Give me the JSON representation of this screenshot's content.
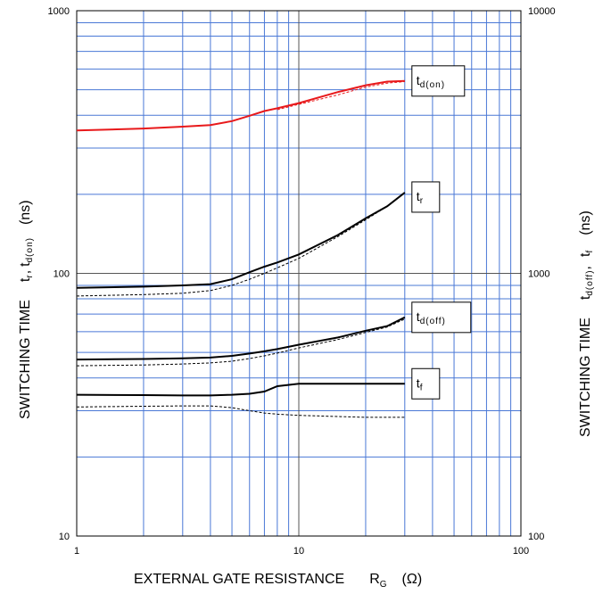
{
  "chart_data": {
    "type": "line",
    "x_scale": "log",
    "y_scale": "log",
    "xlim": [
      1,
      100
    ],
    "ylim_left": [
      10,
      1000
    ],
    "ylim_right": [
      100,
      10000
    ],
    "grid": true,
    "x_ticks": [
      "1",
      "10",
      "100"
    ],
    "y_left_ticks": [
      "10",
      "100",
      "1000"
    ],
    "y_right_ticks": [
      "100",
      "1000",
      "10000"
    ],
    "xlabel": {
      "main": "EXTERNAL GATE RESISTANCE",
      "sym": "R",
      "sub": "G",
      "unit": "(Ω)"
    },
    "ylabel_left": {
      "main": "SWITCHING TIME",
      "t1": "t",
      "s1": "r",
      "sep": ",",
      "t2": "t",
      "s2": "d(on)",
      "unit": "(ns)"
    },
    "ylabel_right": {
      "main": "SWITCHING TIME",
      "t1": "t",
      "s1": "d(off)",
      "sep": ",",
      "t2": "t",
      "s2": "f",
      "unit": "(ns)"
    },
    "series": [
      {
        "label_t": "t",
        "label_sub": "d(on)",
        "axis": "left",
        "color": "#e8191b",
        "x": [
          1,
          2,
          3,
          4,
          5,
          6,
          7,
          8,
          10,
          15,
          20,
          25,
          30
        ],
        "values": [
          350,
          356,
          362,
          367,
          380,
          398,
          415,
          425,
          445,
          490,
          520,
          537,
          540
        ],
        "dashed": [
          null,
          null,
          null,
          null,
          null,
          null,
          null,
          420,
          440,
          478,
          512,
          530,
          537
        ]
      },
      {
        "label_t": "t",
        "label_sub": "r",
        "axis": "left",
        "color": "#000000",
        "x": [
          1,
          2,
          3,
          4,
          5,
          6,
          7,
          8,
          10,
          15,
          20,
          25,
          30
        ],
        "values": [
          88,
          89,
          90,
          91,
          95,
          101,
          106,
          110,
          118,
          140,
          162,
          180,
          203
        ],
        "dashed": [
          82,
          83,
          84,
          86,
          90,
          95,
          100,
          105,
          114,
          138,
          160,
          180,
          203
        ]
      },
      {
        "label_t": "t",
        "label_sub": "d(off)",
        "axis": "right",
        "color": "#000000",
        "x": [
          1,
          2,
          3,
          4,
          5,
          6,
          7,
          8,
          10,
          15,
          20,
          25,
          30
        ],
        "values": [
          470,
          472,
          475,
          478,
          485,
          495,
          505,
          515,
          535,
          570,
          605,
          630,
          680
        ],
        "dashed": [
          445,
          448,
          452,
          456,
          463,
          474,
          485,
          497,
          520,
          560,
          596,
          625,
          670
        ]
      },
      {
        "label_t": "t",
        "label_sub": "f",
        "axis": "right",
        "color": "#000000",
        "x": [
          1,
          2,
          3,
          4,
          5,
          6,
          7,
          8,
          10,
          15,
          20,
          25,
          30
        ],
        "values": [
          345,
          344,
          343,
          343,
          345,
          348,
          355,
          372,
          380,
          380,
          380,
          380,
          380
        ],
        "dashed": [
          310,
          312,
          313,
          313,
          308,
          300,
          294,
          291,
          288,
          285,
          283,
          283,
          283
        ]
      }
    ]
  }
}
